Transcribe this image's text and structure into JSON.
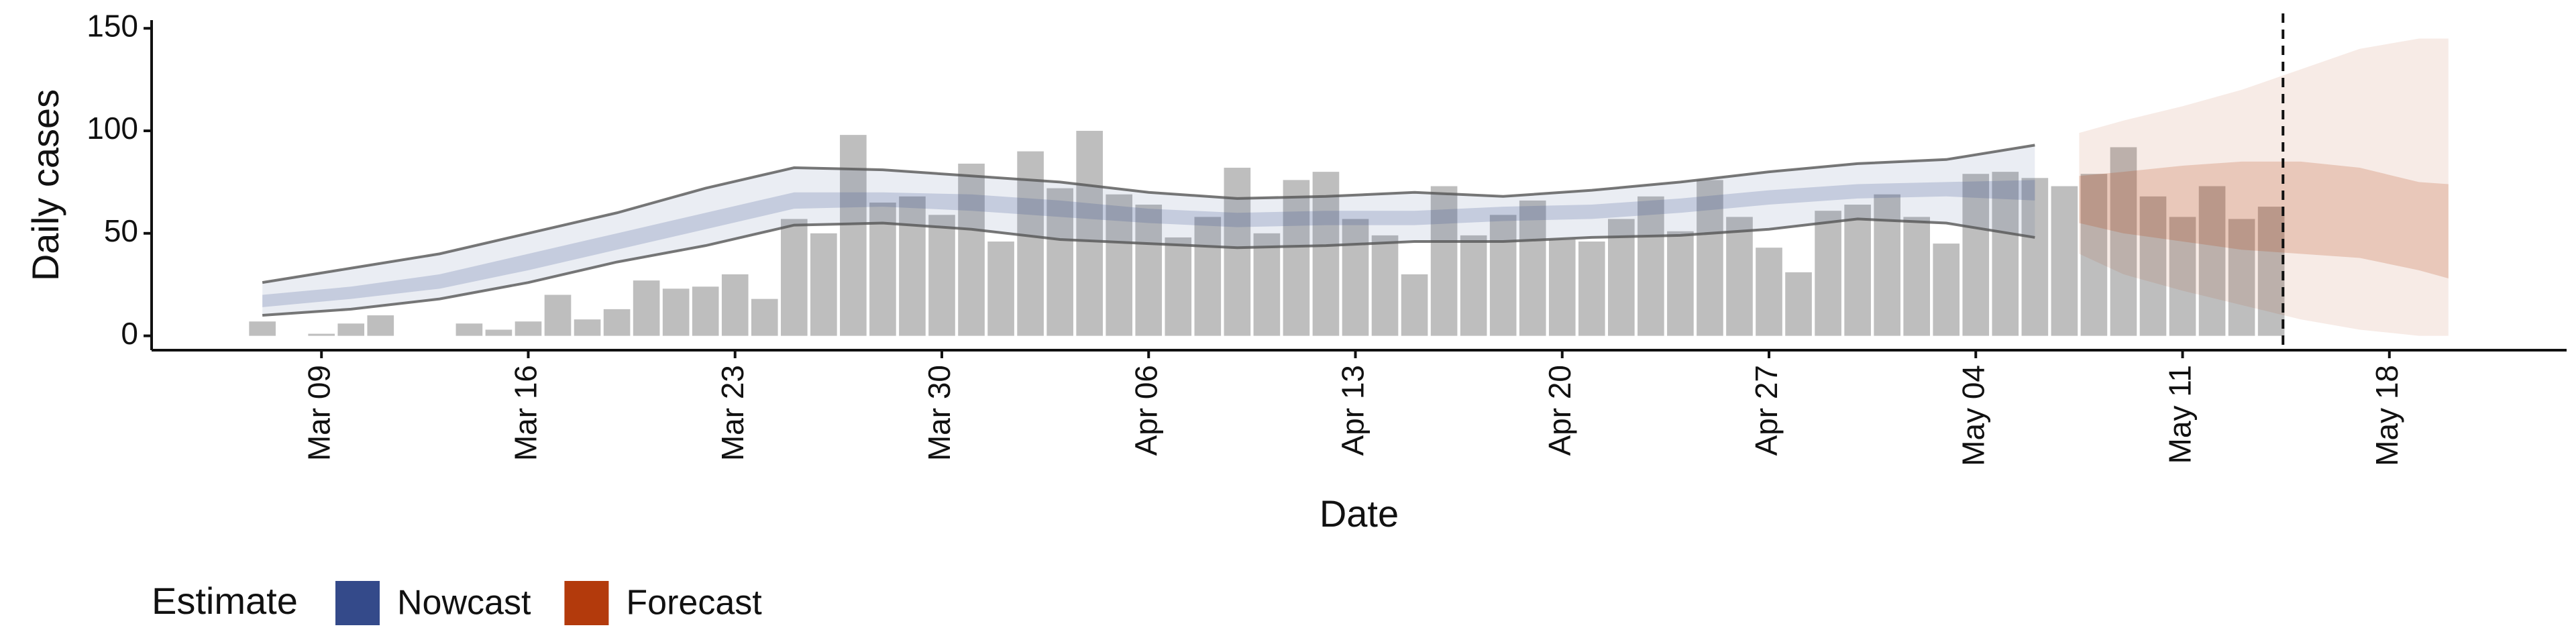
{
  "chart_data": {
    "type": "bar",
    "x_label": "Date",
    "y_label": "Daily cases",
    "xlim": [
      2.25,
      84
    ],
    "ylim": [
      -7,
      154
    ],
    "xticks": [
      {
        "value": 8,
        "label": "Mar 09"
      },
      {
        "value": 15,
        "label": "Mar 16"
      },
      {
        "value": 22,
        "label": "Mar 23"
      },
      {
        "value": 29,
        "label": "Mar 30"
      },
      {
        "value": 36,
        "label": "Apr 06"
      },
      {
        "value": 43,
        "label": "Apr 13"
      },
      {
        "value": 50,
        "label": "Apr 20"
      },
      {
        "value": 57,
        "label": "Apr 27"
      },
      {
        "value": 64,
        "label": "May 04"
      },
      {
        "value": 71,
        "label": "May 11"
      },
      {
        "value": 78,
        "label": "May 18"
      }
    ],
    "yticks": [
      0,
      50,
      100,
      150
    ],
    "color": "#bebebe",
    "x": [
      6,
      7,
      8,
      9,
      10,
      11,
      12,
      13,
      14,
      15,
      16,
      17,
      18,
      19,
      20,
      21,
      22,
      23,
      24,
      25,
      26,
      27,
      28,
      29,
      30,
      31,
      32,
      33,
      34,
      35,
      36,
      37,
      38,
      39,
      40,
      41,
      42,
      43,
      44,
      45,
      46,
      47,
      48,
      49,
      50,
      51,
      52,
      53,
      54,
      55,
      56,
      57,
      58,
      59,
      60,
      61,
      62,
      63,
      64,
      65,
      66,
      67,
      68,
      69,
      70,
      71,
      72,
      73,
      74
    ],
    "values": [
      7,
      0,
      1,
      6,
      10,
      0,
      0,
      6,
      3,
      7,
      20,
      8,
      13,
      27,
      23,
      24,
      30,
      18,
      57,
      50,
      98,
      65,
      68,
      59,
      84,
      46,
      90,
      72,
      100,
      69,
      64,
      48,
      58,
      82,
      50,
      76,
      80,
      57,
      49,
      30,
      73,
      49,
      59,
      66,
      47,
      46,
      57,
      68,
      51,
      76,
      58,
      43,
      31,
      61,
      64,
      69,
      58,
      45,
      79,
      80,
      77,
      73,
      79,
      92,
      68,
      58,
      73,
      57,
      63
    ],
    "legend": {
      "title": "Estimate"
    },
    "series": [
      {
        "name": "Nowcast",
        "color": "#344a8a",
        "outline": true,
        "x": [
          6,
          9,
          12,
          15,
          18,
          21,
          24,
          27,
          30,
          33,
          36,
          39,
          42,
          45,
          48,
          51,
          54,
          57,
          60,
          63,
          66
        ],
        "outer_upper": [
          26,
          33,
          40,
          50,
          60,
          72,
          82,
          81,
          78,
          75,
          70,
          67,
          68,
          70,
          68,
          71,
          75,
          80,
          84,
          86,
          93
        ],
        "outer_lower": [
          10,
          13,
          18,
          26,
          36,
          44,
          54,
          55,
          52,
          47,
          45,
          43,
          44,
          46,
          46,
          48,
          49,
          52,
          57,
          55,
          48
        ],
        "inner_upper": [
          20,
          24,
          30,
          40,
          50,
          60,
          70,
          70,
          69,
          66,
          62,
          60,
          61,
          61,
          63,
          64,
          67,
          71,
          74,
          75,
          76
        ],
        "inner_lower": [
          14,
          18,
          23,
          32,
          42,
          52,
          62,
          63,
          61,
          58,
          55,
          53,
          54,
          54,
          56,
          57,
          60,
          64,
          67,
          68,
          66
        ]
      },
      {
        "name": "Forecast",
        "color": "#b33a0c",
        "outline": false,
        "x": [
          67.5,
          69,
          71,
          73,
          75,
          77,
          79,
          80
        ],
        "outer_upper": [
          99,
          105,
          112,
          120,
          130,
          140,
          145,
          145
        ],
        "outer_lower": [
          40,
          30,
          22,
          15,
          8,
          3,
          0,
          0
        ],
        "inner_upper": [
          78,
          80,
          83,
          85,
          85,
          82,
          75,
          74
        ],
        "inner_lower": [
          55,
          50,
          46,
          42,
          40,
          38,
          32,
          28
        ]
      }
    ],
    "vline": {
      "x": 74.4,
      "dashed": true
    }
  }
}
